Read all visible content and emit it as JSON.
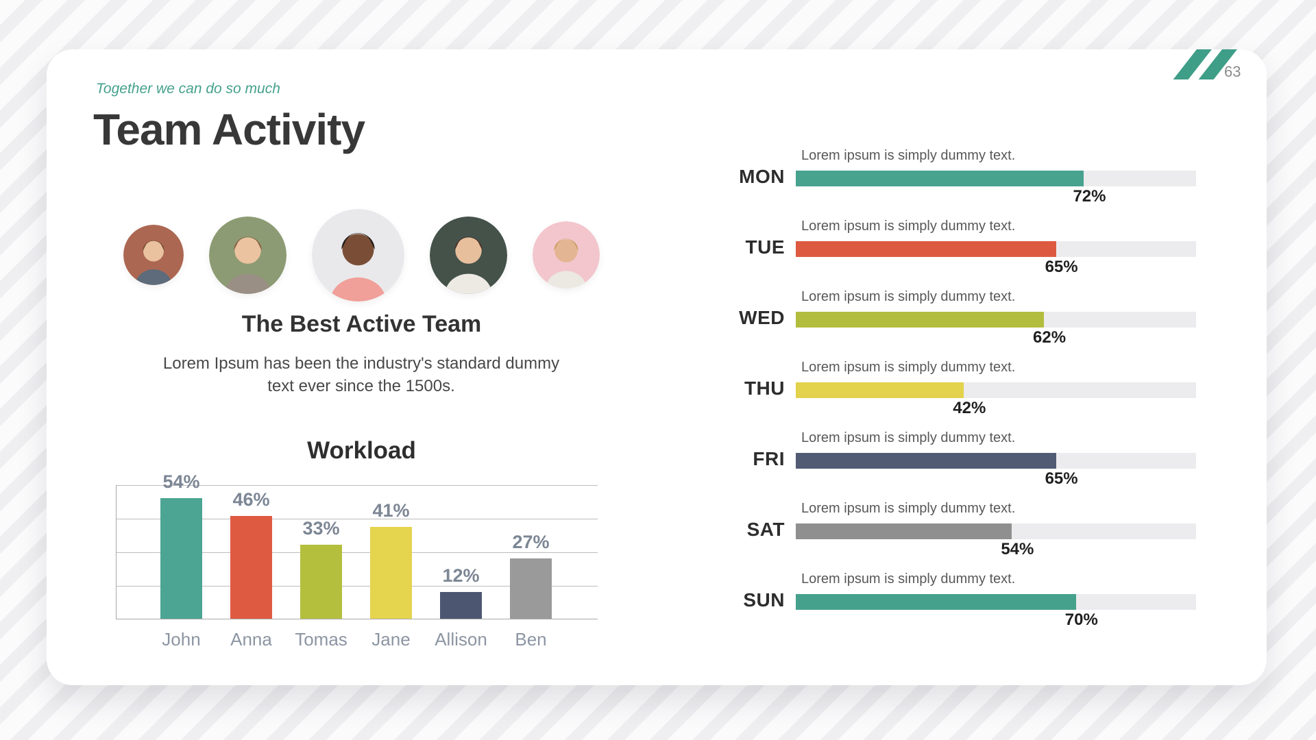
{
  "page_number": "63",
  "slide": {
    "kicker": "Together we can do so much",
    "title": "Team Activity",
    "team_heading": "The Best Active Team",
    "team_description": "Lorem Ipsum has been the industry's standard dummy text ever since the 1500s."
  },
  "colors": {
    "accent_teal": "#45A18C",
    "corner_stripe": "#3F9E88",
    "kicker_text": "#45A18C",
    "progress_track": "#ECEBEE",
    "grid_line": "#BCBCBC"
  },
  "avatars": [
    {
      "name": "avatar-1",
      "bg": "#AC6752",
      "skin": "#EAC29F",
      "hair": "#6B4A2F",
      "shirt": "#5D6B7A"
    },
    {
      "name": "avatar-2",
      "bg": "#8C9B73",
      "skin": "#ECC3A0",
      "hair": "#8A5F43",
      "shirt": "#9A8F85"
    },
    {
      "name": "avatar-3",
      "bg": "#E9E9EC",
      "skin": "#7A4E36",
      "hair": "#221C18",
      "shirt": "#F0A099"
    },
    {
      "name": "avatar-4",
      "bg": "#44524A",
      "skin": "#E8BF9D",
      "hair": "#4A3328",
      "shirt": "#EDEAE4"
    },
    {
      "name": "avatar-5",
      "bg": "#F2C6CC",
      "skin": "#E3B592",
      "hair": "#C79A5B",
      "shirt": "#ECE8E2"
    }
  ],
  "chart_data": [
    {
      "type": "bar",
      "title": "Workload",
      "categories": [
        "John",
        "Anna",
        "Tomas",
        "Jane",
        "Allison",
        "Ben"
      ],
      "values": [
        54,
        46,
        33,
        41,
        12,
        27
      ],
      "labels": [
        "54%",
        "46%",
        "33%",
        "41%",
        "12%",
        "27%"
      ],
      "colors": [
        "#4BA592",
        "#DE5B41",
        "#B4BF3E",
        "#E5D44D",
        "#4D5671",
        "#9A9A9A"
      ],
      "xlabel": "",
      "ylabel": "",
      "ylim": [
        0,
        60
      ],
      "gridline_step": 15,
      "grid": true,
      "legend": false
    },
    {
      "type": "bar",
      "orientation": "horizontal",
      "title": "",
      "categories": [
        "MON",
        "TUE",
        "WED",
        "THU",
        "FRI",
        "SAT",
        "SUN"
      ],
      "values": [
        72,
        65,
        62,
        42,
        65,
        54,
        70
      ],
      "labels": [
        "72%",
        "65%",
        "62%",
        "42%",
        "65%",
        "54%",
        "70%"
      ],
      "row_caption": "Lorem ipsum is simply dummy text.",
      "colors": [
        "#47A28E",
        "#DD5A40",
        "#B3BD3D",
        "#E3D24B",
        "#515B74",
        "#8F8F8F",
        "#45A18C"
      ],
      "xlim": [
        0,
        100
      ],
      "track_color": "#ECEBEE",
      "grid": false,
      "legend": false
    }
  ]
}
